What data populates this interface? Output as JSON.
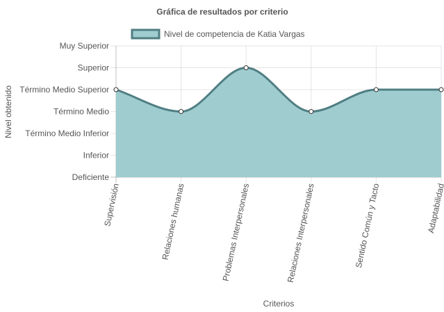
{
  "chart_data": {
    "type": "area",
    "title": "Gráfica de resultados por criterio",
    "xlabel": "Criterios",
    "ylabel": "Nivel obtenido",
    "categories": [
      "Supervisión",
      "Relaciones humanas",
      "Problemas Interpersonales",
      "Relaciones Interpersonales",
      "Sentido Común y Tacto",
      "Adaptabilidad"
    ],
    "y_levels": [
      "Deficiente",
      "Inferior",
      "Término Medio Inferior",
      "Término Medio",
      "Término Medio Superior",
      "Superior",
      "Muy Superior"
    ],
    "series": [
      {
        "name": "Nivel de competencia de Katia Vargas",
        "values": [
          4,
          3,
          5,
          3,
          4,
          4
        ]
      }
    ],
    "ylim": [
      0,
      6
    ],
    "grid": true,
    "legend_position": "top",
    "colors": {
      "fill": "#9fcccf",
      "line": "#4f7e83",
      "point_fill": "#ffffff"
    }
  }
}
